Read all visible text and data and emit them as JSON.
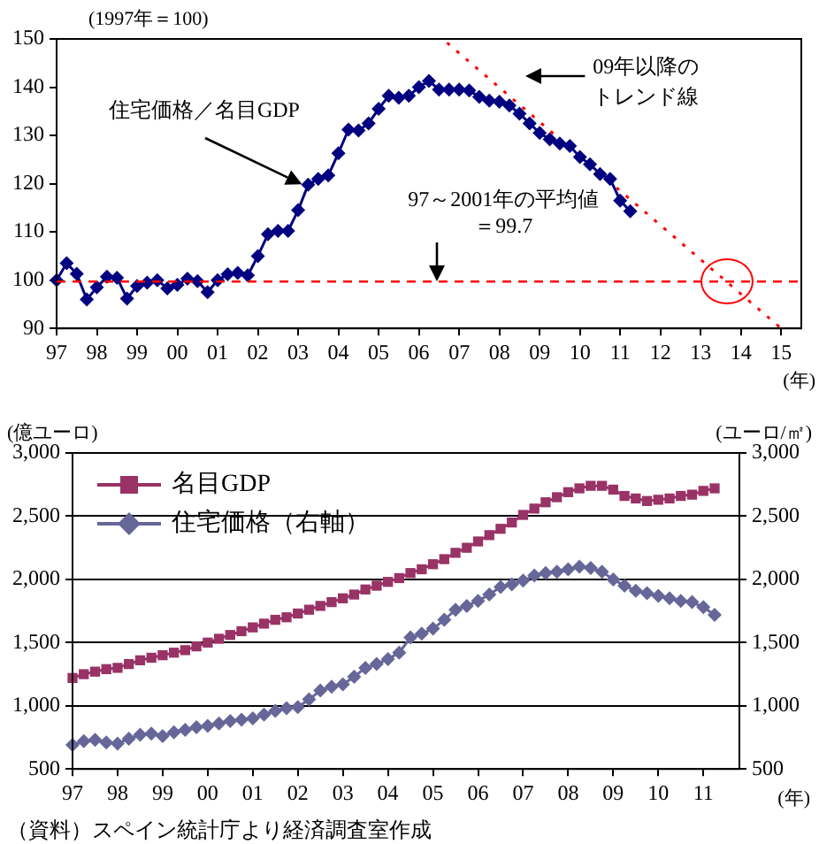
{
  "chart_data": [
    {
      "type": "line",
      "ylabel": "(1997年＝100)",
      "xlabel": "(年)",
      "xlim": [
        1997,
        2015.5
      ],
      "xticks": [
        {
          "value": 1997,
          "label": "97"
        },
        {
          "value": 1998,
          "label": "98"
        },
        {
          "value": 1999,
          "label": "99"
        },
        {
          "value": 2000,
          "label": "00"
        },
        {
          "value": 2001,
          "label": "01"
        },
        {
          "value": 2002,
          "label": "02"
        },
        {
          "value": 2003,
          "label": "03"
        },
        {
          "value": 2004,
          "label": "04"
        },
        {
          "value": 2005,
          "label": "05"
        },
        {
          "value": 2006,
          "label": "06"
        },
        {
          "value": 2007,
          "label": "07"
        },
        {
          "value": 2008,
          "label": "08"
        },
        {
          "value": 2009,
          "label": "09"
        },
        {
          "value": 2010,
          "label": "10"
        },
        {
          "value": 2011,
          "label": "11"
        },
        {
          "value": 2012,
          "label": "12"
        },
        {
          "value": 2013,
          "label": "13"
        },
        {
          "value": 2014,
          "label": "14"
        },
        {
          "value": 2015,
          "label": "15"
        }
      ],
      "ylim": [
        90,
        150
      ],
      "yticks": [
        90,
        100,
        110,
        120,
        130,
        140,
        150
      ],
      "grid": false,
      "legend": false,
      "x": [
        1997,
        1997.25,
        1997.5,
        1997.75,
        1998,
        1998.25,
        1998.5,
        1998.75,
        1999,
        1999.25,
        1999.5,
        1999.75,
        2000,
        2000.25,
        2000.5,
        2000.75,
        2001,
        2001.25,
        2001.5,
        2001.75,
        2002,
        2002.25,
        2002.5,
        2002.75,
        2003,
        2003.25,
        2003.5,
        2003.75,
        2004,
        2004.25,
        2004.5,
        2004.75,
        2005,
        2005.25,
        2005.5,
        2005.75,
        2006,
        2006.25,
        2006.5,
        2006.75,
        2007,
        2007.25,
        2007.5,
        2007.75,
        2008,
        2008.25,
        2008.5,
        2008.75,
        2009,
        2009.25,
        2009.5,
        2009.75,
        2010,
        2010.25,
        2010.5,
        2010.75,
        2011,
        2011.25
      ],
      "series": [
        {
          "name": "住宅価格／名目GDP",
          "color": "#000080",
          "marker": "diamond",
          "line_style": "solid",
          "values": [
            100,
            103.5,
            101.3,
            96,
            98.5,
            100.7,
            100.5,
            96.2,
            98.8,
            99.5,
            100,
            98.3,
            99,
            100.3,
            99.8,
            97.5,
            100,
            101.2,
            101.5,
            101,
            105,
            109.5,
            110.2,
            110.2,
            114.5,
            119.8,
            121,
            121.7,
            126.3,
            131.2,
            131,
            132.5,
            135.5,
            138.2,
            137.8,
            138.2,
            140,
            141.3,
            139.5,
            139.5,
            139.5,
            139.3,
            138,
            137.2,
            137,
            136.2,
            134.5,
            132.5,
            130.5,
            129.2,
            128.3,
            127.8,
            125.5,
            124,
            122,
            121,
            116.5,
            114.3
          ]
        },
        {
          "name": "09年以降のトレンド線",
          "type": "line",
          "color": "#ff0000",
          "marker": "none",
          "line_style": "dotted",
          "x": [
            2006.7,
            2015
          ],
          "values": [
            149.2,
            90
          ]
        }
      ],
      "ref_lines": [
        {
          "axis": "y",
          "value": 99.7,
          "label": "97～2001年の平均値＝99.7",
          "color": "#ff0000",
          "line_style": "dashed"
        }
      ]
    },
    {
      "type": "line",
      "ylabel": "(億ユーロ)",
      "y2label": "(ユーロ/㎡)",
      "xlabel": "(年)",
      "xlim": [
        1997,
        2011.8
      ],
      "xticks": [
        {
          "value": 1997,
          "label": "97"
        },
        {
          "value": 1998,
          "label": "98"
        },
        {
          "value": 1999,
          "label": "99"
        },
        {
          "value": 2000,
          "label": "00"
        },
        {
          "value": 2001,
          "label": "01"
        },
        {
          "value": 2002,
          "label": "02"
        },
        {
          "value": 2003,
          "label": "03"
        },
        {
          "value": 2004,
          "label": "04"
        },
        {
          "value": 2005,
          "label": "05"
        },
        {
          "value": 2006,
          "label": "06"
        },
        {
          "value": 2007,
          "label": "07"
        },
        {
          "value": 2008,
          "label": "08"
        },
        {
          "value": 2009,
          "label": "09"
        },
        {
          "value": 2010,
          "label": "10"
        },
        {
          "value": 2011,
          "label": "11"
        }
      ],
      "ylim": [
        500,
        3000
      ],
      "yticks": [
        {
          "value": 500,
          "label": "500"
        },
        {
          "value": 1000,
          "label": "1,000"
        },
        {
          "value": 1500,
          "label": "1,500"
        },
        {
          "value": 2000,
          "label": "2,000"
        },
        {
          "value": 2500,
          "label": "2,500"
        },
        {
          "value": 3000,
          "label": "3,000"
        }
      ],
      "y2lim": [
        500,
        3000
      ],
      "y2ticks": [
        {
          "value": 500,
          "label": "500"
        },
        {
          "value": 1000,
          "label": "1,000"
        },
        {
          "value": 1500,
          "label": "1,500"
        },
        {
          "value": 2000,
          "label": "2,000"
        },
        {
          "value": 2500,
          "label": "2,500"
        },
        {
          "value": 3000,
          "label": "3,000"
        }
      ],
      "grid": "y",
      "legend": "top left",
      "x": [
        1997,
        1997.25,
        1997.5,
        1997.75,
        1998,
        1998.25,
        1998.5,
        1998.75,
        1999,
        1999.25,
        1999.5,
        1999.75,
        2000,
        2000.25,
        2000.5,
        2000.75,
        2001,
        2001.25,
        2001.5,
        2001.75,
        2002,
        2002.25,
        2002.5,
        2002.75,
        2003,
        2003.25,
        2003.5,
        2003.75,
        2004,
        2004.25,
        2004.5,
        2004.75,
        2005,
        2005.25,
        2005.5,
        2005.75,
        2006,
        2006.25,
        2006.5,
        2006.75,
        2007,
        2007.25,
        2007.5,
        2007.75,
        2008,
        2008.25,
        2008.5,
        2008.75,
        2009,
        2009.25,
        2009.5,
        2009.75,
        2010,
        2010.25,
        2010.5,
        2010.75,
        2011,
        2011.25
      ],
      "series": [
        {
          "name": "名目GDP",
          "color": "#993366",
          "marker": "square",
          "values": [
            1220,
            1250,
            1270,
            1290,
            1300,
            1330,
            1360,
            1380,
            1400,
            1420,
            1440,
            1470,
            1500,
            1530,
            1560,
            1590,
            1620,
            1650,
            1680,
            1700,
            1730,
            1760,
            1790,
            1820,
            1850,
            1880,
            1920,
            1950,
            1980,
            2010,
            2050,
            2080,
            2120,
            2160,
            2210,
            2250,
            2300,
            2350,
            2400,
            2450,
            2510,
            2560,
            2610,
            2650,
            2690,
            2720,
            2740,
            2740,
            2710,
            2660,
            2640,
            2620,
            2630,
            2640,
            2660,
            2670,
            2700,
            2720
          ]
        },
        {
          "name": "住宅価格（右軸）",
          "color": "#666699",
          "marker": "diamond",
          "axis": "y2",
          "values": [
            690,
            720,
            730,
            710,
            700,
            740,
            770,
            780,
            760,
            790,
            810,
            830,
            840,
            860,
            880,
            890,
            900,
            930,
            960,
            980,
            990,
            1050,
            1120,
            1150,
            1170,
            1230,
            1300,
            1330,
            1370,
            1420,
            1540,
            1570,
            1610,
            1680,
            1760,
            1790,
            1830,
            1880,
            1940,
            1960,
            1990,
            2030,
            2050,
            2060,
            2080,
            2100,
            2090,
            2060,
            2000,
            1950,
            1910,
            1890,
            1870,
            1850,
            1830,
            1820,
            1780,
            1720
          ]
        }
      ],
      "annotations": [
        "（資料）スペイン統計庁より経済調査室作成"
      ]
    }
  ]
}
